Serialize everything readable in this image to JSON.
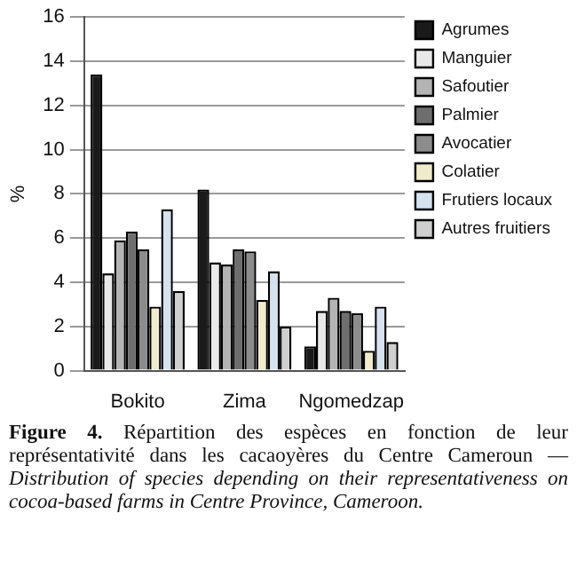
{
  "chart_data": {
    "type": "bar",
    "ylabel": "%",
    "categories": [
      "Bokito",
      "Zima",
      "Ngomedzap"
    ],
    "series": [
      {
        "name": "Agrumes",
        "color": "#1a1a1a",
        "values": [
          13.4,
          8.2,
          1.1
        ]
      },
      {
        "name": "Manguier",
        "color": "#e9e9e9",
        "values": [
          4.4,
          4.9,
          2.7
        ]
      },
      {
        "name": "Safoutier",
        "color": "#b4b4b4",
        "values": [
          5.9,
          4.8,
          3.3
        ]
      },
      {
        "name": "Palmier",
        "color": "#6e6e6e",
        "values": [
          6.3,
          5.5,
          2.7
        ]
      },
      {
        "name": "Avocatier",
        "color": "#8c8c8c",
        "values": [
          5.5,
          5.4,
          2.6
        ]
      },
      {
        "name": "Colatier",
        "color": "#f0ebcc",
        "values": [
          2.9,
          3.2,
          0.9
        ]
      },
      {
        "name": "Frutiers locaux",
        "color": "#d6e2ee",
        "values": [
          7.3,
          4.5,
          2.9
        ]
      },
      {
        "name": "Autres fruitiers",
        "color": "#cfcfcf",
        "values": [
          3.6,
          2.0,
          1.3
        ]
      }
    ],
    "ylim": [
      0,
      16
    ],
    "yticks": [
      0,
      2,
      4,
      6,
      8,
      10,
      12,
      14,
      16
    ],
    "grid": "y",
    "legend": "right",
    "annotations": [
      "Figure 4.",
      "Répartition des espèces en fonction de leur représentativité dans les cacaoyères du Centre Cameroun —",
      "Distribution of species depending on their representativeness on cocoa-based farms in Centre Province, Cameroon."
    ]
  }
}
